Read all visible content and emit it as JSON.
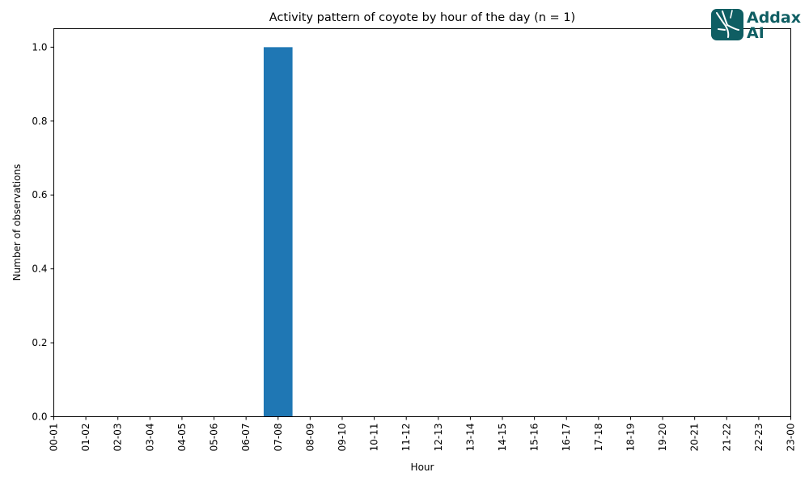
{
  "chart_data": {
    "type": "bar",
    "title": "Activity pattern of coyote by hour of the day (n = 1)",
    "xlabel": "Hour",
    "ylabel": "Number of observations",
    "categories": [
      "00-01",
      "01-02",
      "02-03",
      "03-04",
      "04-05",
      "05-06",
      "06-07",
      "07-08",
      "08-09",
      "09-10",
      "10-11",
      "11-12",
      "12-13",
      "13-14",
      "14-15",
      "15-16",
      "16-17",
      "17-18",
      "18-19",
      "19-20",
      "20-21",
      "21-22",
      "22-23",
      "23-00"
    ],
    "values": [
      0,
      0,
      0,
      0,
      0,
      0,
      0,
      1,
      0,
      0,
      0,
      0,
      0,
      0,
      0,
      0,
      0,
      0,
      0,
      0,
      0,
      0,
      0,
      0
    ],
    "ylim": [
      0,
      1.05
    ],
    "yticks": [
      "0.0",
      "0.2",
      "0.4",
      "0.6",
      "0.8",
      "1.0"
    ],
    "grid": false,
    "bar_color": "#1f77b4"
  },
  "logo": {
    "line1": "Addax",
    "line2": "AI",
    "color": "#0f5e63",
    "icon": "addax-antelope-icon"
  }
}
